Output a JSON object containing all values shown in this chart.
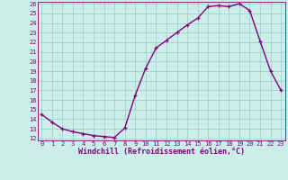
{
  "x": [
    0,
    1,
    2,
    3,
    4,
    5,
    6,
    7,
    8,
    9,
    10,
    11,
    12,
    13,
    14,
    15,
    16,
    17,
    18,
    19,
    20,
    21,
    22,
    23
  ],
  "y": [
    14.5,
    13.7,
    13.0,
    12.7,
    12.5,
    12.3,
    12.2,
    12.1,
    13.1,
    16.5,
    19.3,
    21.4,
    22.2,
    23.0,
    23.8,
    24.5,
    25.7,
    25.8,
    25.7,
    26.0,
    25.3,
    22.1,
    19.0,
    17.0
  ],
  "line_color": "#800080",
  "marker": "+",
  "xlabel": "Windchill (Refroidissement éolien,°C)",
  "bg_color": "#cceee8",
  "grid_color": "#99cccc",
  "ylim_min": 12,
  "ylim_max": 26,
  "xlim_min": 0,
  "xlim_max": 23,
  "yticks": [
    12,
    13,
    14,
    15,
    16,
    17,
    18,
    19,
    20,
    21,
    22,
    23,
    24,
    25,
    26
  ],
  "xticks": [
    0,
    1,
    2,
    3,
    4,
    5,
    6,
    7,
    8,
    9,
    10,
    11,
    12,
    13,
    14,
    15,
    16,
    17,
    18,
    19,
    20,
    21,
    22,
    23
  ],
  "tick_color": "#800080",
  "label_color": "#800080",
  "tick_fontsize": 5.0,
  "xlabel_fontsize": 6.0,
  "linewidth": 1.0,
  "markersize": 3.5,
  "markeredgewidth": 0.9
}
